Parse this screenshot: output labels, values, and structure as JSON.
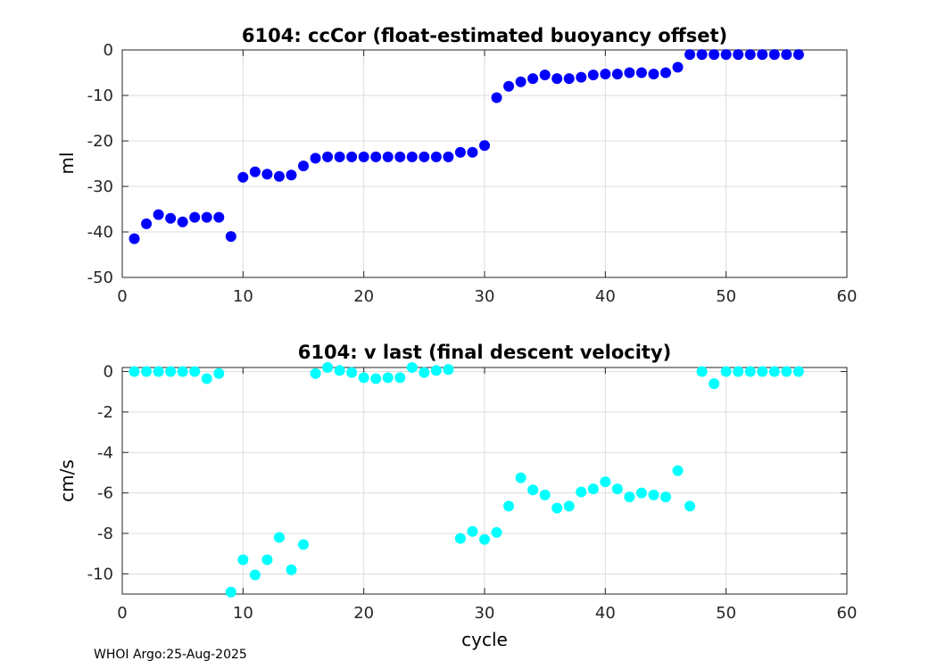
{
  "chart_data": [
    {
      "type": "scatter",
      "title": "6104: ccCor (float-estimated buoyancy offset)",
      "xlabel": "",
      "ylabel": "ml",
      "xlim": [
        0,
        60
      ],
      "ylim": [
        -50,
        0
      ],
      "xticks": [
        "0",
        "10",
        "20",
        "30",
        "40",
        "50",
        "60"
      ],
      "yticks": [
        "0",
        "-10",
        "-20",
        "-30",
        "-40",
        "-50"
      ],
      "grid": true,
      "marker_color": "#0000ff",
      "series": [
        {
          "name": "ccCor",
          "x": [
            1,
            2,
            3,
            4,
            5,
            6,
            7,
            8,
            9,
            10,
            11,
            12,
            13,
            14,
            15,
            16,
            17,
            18,
            19,
            20,
            21,
            22,
            23,
            24,
            25,
            26,
            27,
            28,
            29,
            30,
            31,
            32,
            33,
            34,
            35,
            36,
            37,
            38,
            39,
            40,
            41,
            42,
            43,
            44,
            45,
            46,
            47,
            48,
            49,
            50,
            51,
            52,
            53,
            54,
            55,
            56
          ],
          "y": [
            -41.5,
            -38.2,
            -36.2,
            -37.0,
            -37.8,
            -36.8,
            -36.8,
            -36.8,
            -41.0,
            -28.0,
            -26.8,
            -27.3,
            -27.8,
            -27.5,
            -25.5,
            -23.8,
            -23.5,
            -23.5,
            -23.5,
            -23.5,
            -23.5,
            -23.5,
            -23.5,
            -23.5,
            -23.5,
            -23.5,
            -23.5,
            -22.5,
            -22.5,
            -21.0,
            -10.5,
            -8.0,
            -7.0,
            -6.3,
            -5.5,
            -6.3,
            -6.3,
            -6.0,
            -5.5,
            -5.3,
            -5.3,
            -5.0,
            -5.0,
            -5.3,
            -5.0,
            -3.8,
            -1.0,
            -1.0,
            -1.0,
            -1.0,
            -1.0,
            -1.0,
            -1.0,
            -1.0,
            -1.0,
            -1.0
          ]
        }
      ]
    },
    {
      "type": "scatter",
      "title": "6104: v last (final descent velocity)",
      "xlabel": "cycle",
      "ylabel": "cm/s",
      "xlim": [
        0,
        60
      ],
      "ylim": [
        -11,
        0.2
      ],
      "xticks": [
        "0",
        "10",
        "20",
        "30",
        "40",
        "50",
        "60"
      ],
      "yticks": [
        "0",
        "-2",
        "-4",
        "-6",
        "-8",
        "-10"
      ],
      "grid": true,
      "marker_color": "#00ffff",
      "series": [
        {
          "name": "v last",
          "x": [
            1,
            2,
            3,
            4,
            5,
            6,
            7,
            8,
            9,
            10,
            11,
            12,
            13,
            14,
            15,
            16,
            17,
            18,
            19,
            20,
            21,
            22,
            23,
            24,
            25,
            26,
            27,
            28,
            29,
            30,
            31,
            32,
            33,
            34,
            35,
            36,
            37,
            38,
            39,
            40,
            41,
            42,
            43,
            44,
            45,
            46,
            47,
            48,
            49,
            50,
            51,
            52,
            53,
            54,
            55,
            56
          ],
          "y": [
            0,
            0,
            0,
            0,
            0,
            0,
            -0.35,
            -0.1,
            -10.9,
            -9.3,
            -10.05,
            -9.3,
            -8.2,
            -9.8,
            -8.55,
            -0.1,
            0.2,
            0.05,
            -0.05,
            -0.3,
            -0.35,
            -0.3,
            -0.3,
            0.2,
            -0.05,
            0.05,
            0.1,
            -8.25,
            -7.9,
            -8.3,
            -7.95,
            -6.65,
            -5.25,
            -5.85,
            -6.1,
            -6.75,
            -6.65,
            -5.95,
            -5.8,
            -5.45,
            -5.8,
            -6.2,
            -6.0,
            -6.1,
            -6.2,
            -4.9,
            -6.65,
            0,
            -0.6,
            0,
            0,
            0,
            0,
            0,
            0,
            0
          ]
        }
      ]
    }
  ],
  "footer": "WHOI Argo:25-Aug-2025"
}
